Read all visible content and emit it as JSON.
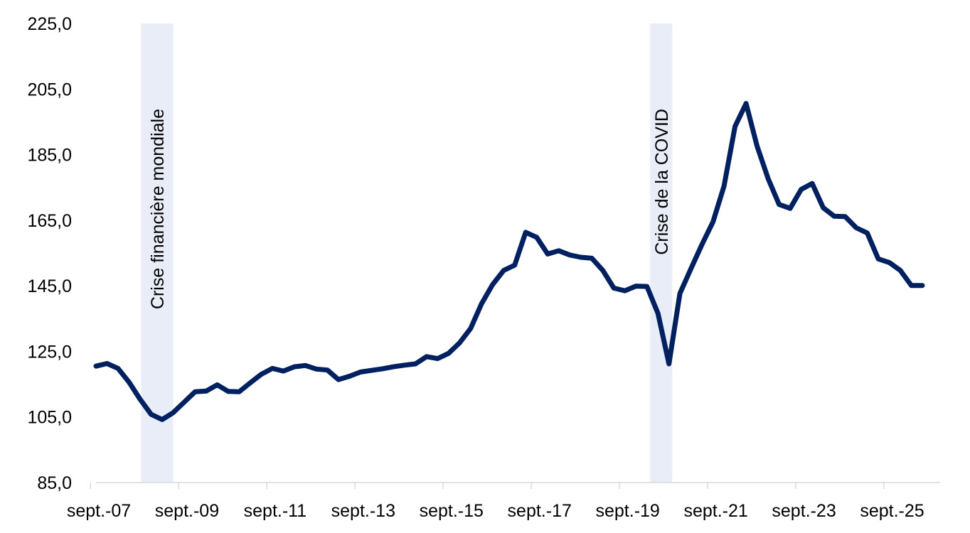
{
  "chart_data": {
    "type": "line",
    "title": "",
    "xlabel": "",
    "ylabel": "",
    "ylim": [
      85,
      225
    ],
    "yticks": [
      "225,0",
      "205,0",
      "185,0",
      "165,0",
      "145,0",
      "125,0",
      "105,0",
      "85,0"
    ],
    "ytick_values": [
      225,
      205,
      185,
      165,
      145,
      125,
      105,
      85
    ],
    "xlim_quarters": [
      0,
      76
    ],
    "xticks": [
      {
        "label": "sept.-07",
        "quarter": 0
      },
      {
        "label": "sept.-09",
        "quarter": 8
      },
      {
        "label": "sept.-11",
        "quarter": 16
      },
      {
        "label": "sept.-13",
        "quarter": 24
      },
      {
        "label": "sept.-15",
        "quarter": 32
      },
      {
        "label": "sept.-17",
        "quarter": 40
      },
      {
        "label": "sept.-19",
        "quarter": 48
      },
      {
        "label": "sept.-21",
        "quarter": 56
      },
      {
        "label": "sept.-23",
        "quarter": 64
      },
      {
        "label": "sept.-25",
        "quarter": 72
      }
    ],
    "grid": false,
    "line_color": "#002060",
    "band_color": "#e8edf7",
    "series": [
      {
        "name": "",
        "values": [
          120.5,
          121.3,
          119.8,
          115.6,
          110.4,
          105.8,
          104.2,
          106.3,
          109.5,
          112.7,
          112.9,
          114.8,
          112.8,
          112.7,
          115.4,
          118.0,
          119.8,
          119.0,
          120.3,
          120.7,
          119.6,
          119.3,
          116.4,
          117.4,
          118.7,
          119.2,
          119.7,
          120.3,
          120.8,
          121.2,
          123.4,
          122.8,
          124.4,
          127.6,
          132.0,
          139.6,
          145.4,
          149.7,
          151.3,
          161.3,
          159.8,
          154.7,
          155.7,
          154.4,
          153.7,
          153.4,
          149.7,
          144.3,
          143.5,
          144.9,
          144.8,
          136.6,
          121.2,
          142.7,
          150.2,
          157.6,
          164.5,
          175.4,
          193.6,
          200.6,
          187.6,
          177.7,
          169.8,
          168.6,
          174.4,
          176.2,
          168.8,
          166.2,
          166.1,
          162.7,
          161.1,
          153.2,
          152.1,
          149.7,
          145.1,
          145.1
        ]
      }
    ],
    "annotations": [
      {
        "label": "Crise financière mondiale",
        "x_start": 4.1,
        "x_end": 7.0
      },
      {
        "label": "Crise de la COVID",
        "x_start": 50.3,
        "x_end": 52.3
      }
    ]
  }
}
